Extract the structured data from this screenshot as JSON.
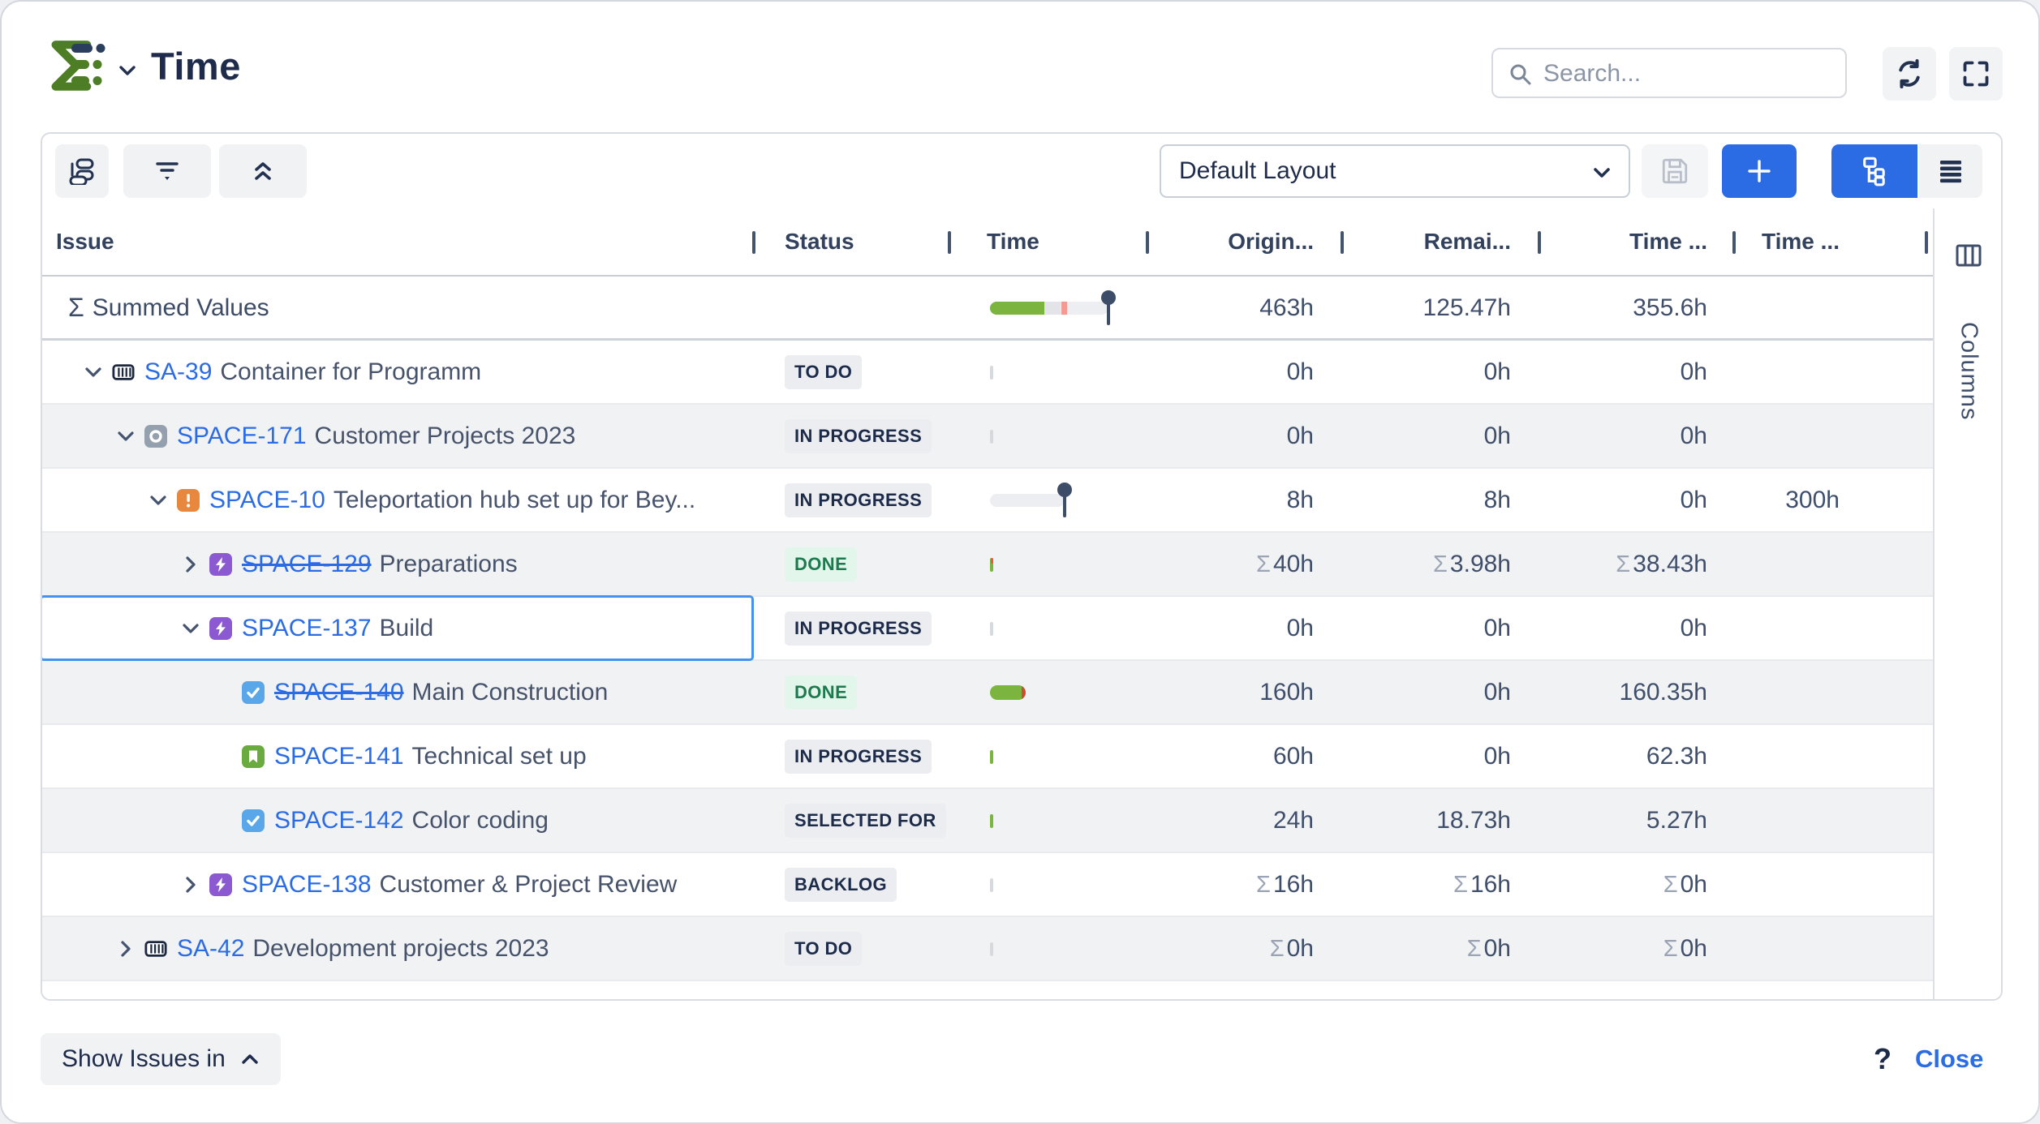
{
  "app": {
    "title": "Time"
  },
  "search": {
    "placeholder": "Search..."
  },
  "toolbar": {
    "layout_selected": "Default Layout"
  },
  "grid": {
    "columns": [
      {
        "label": "Issue"
      },
      {
        "label": "Status"
      },
      {
        "label": "Time"
      },
      {
        "label": "Origin..."
      },
      {
        "label": "Remai..."
      },
      {
        "label": "Time ..."
      },
      {
        "label": "Time ..."
      }
    ],
    "summed": {
      "sigma": "Σ",
      "label": "Summed Values",
      "original": "463h",
      "remaining": "125.47h",
      "time_spent": "355.6h",
      "bar": {
        "green_ratio": 0.46,
        "red_marker_ratio": 0.6,
        "pin_ratio": 1.0
      }
    },
    "rows": [
      {
        "key": "SA-39",
        "summary": "Container for Programm",
        "icon": "container",
        "level": 0,
        "expand": "open",
        "strike": false,
        "sum": false,
        "selected": false,
        "status": {
          "label": "TO DO",
          "kind": "neutral"
        },
        "bar": "tick-gray",
        "values": [
          "0h",
          "0h",
          "0h",
          ""
        ]
      },
      {
        "key": "SPACE-171",
        "summary": "Customer Projects 2023",
        "icon": "outcome",
        "level": 1,
        "expand": "open",
        "strike": false,
        "sum": false,
        "selected": false,
        "status": {
          "label": "IN PROGRESS",
          "kind": "neutral"
        },
        "bar": "tick-gray",
        "values": [
          "0h",
          "0h",
          "0h",
          ""
        ]
      },
      {
        "key": "SPACE-10",
        "summary": "Teleportation hub set up for Bey...",
        "icon": "incident",
        "level": 2,
        "expand": "open",
        "strike": false,
        "sum": false,
        "selected": false,
        "status": {
          "label": "IN PROGRESS",
          "kind": "neutral"
        },
        "bar": "track-pin",
        "values": [
          "8h",
          "8h",
          "0h",
          "300h"
        ]
      },
      {
        "key": "SPACE-129",
        "summary": "Preparations",
        "icon": "epic",
        "level": 3,
        "expand": "closed",
        "strike": true,
        "sum": true,
        "selected": false,
        "status": {
          "label": "DONE",
          "kind": "success"
        },
        "bar": "tick-green-red",
        "values": [
          "40h",
          "3.98h",
          "38.43h",
          ""
        ]
      },
      {
        "key": "SPACE-137",
        "summary": "Build",
        "icon": "epic",
        "level": 3,
        "expand": "open",
        "strike": false,
        "sum": false,
        "selected": true,
        "status": {
          "label": "IN PROGRESS",
          "kind": "neutral"
        },
        "bar": "tick-gray",
        "values": [
          "0h",
          "0h",
          "0h",
          ""
        ]
      },
      {
        "key": "SPACE-140",
        "summary": "Main Construction",
        "icon": "task",
        "level": 4,
        "expand": "leaf",
        "strike": true,
        "sum": false,
        "selected": false,
        "status": {
          "label": "DONE",
          "kind": "success"
        },
        "bar": "pill-green",
        "values": [
          "160h",
          "0h",
          "160.35h",
          ""
        ]
      },
      {
        "key": "SPACE-141",
        "summary": "Technical set up",
        "icon": "story",
        "level": 4,
        "expand": "leaf",
        "strike": false,
        "sum": false,
        "selected": false,
        "status": {
          "label": "IN PROGRESS",
          "kind": "neutral"
        },
        "bar": "tick-green",
        "values": [
          "60h",
          "0h",
          "62.3h",
          ""
        ]
      },
      {
        "key": "SPACE-142",
        "summary": "Color coding",
        "icon": "task",
        "level": 4,
        "expand": "leaf",
        "strike": false,
        "sum": false,
        "selected": false,
        "status": {
          "label": "SELECTED FOR",
          "kind": "neutral"
        },
        "bar": "tick-green",
        "values": [
          "24h",
          "18.73h",
          "5.27h",
          ""
        ]
      },
      {
        "key": "SPACE-138",
        "summary": "Customer & Project Review",
        "icon": "epic",
        "level": 3,
        "expand": "closed",
        "strike": false,
        "sum": true,
        "selected": false,
        "status": {
          "label": "BACKLOG",
          "kind": "neutral"
        },
        "bar": "tick-gray",
        "values": [
          "16h",
          "16h",
          "0h",
          ""
        ]
      },
      {
        "key": "SA-42",
        "summary": "Development projects 2023",
        "icon": "container",
        "level": 1,
        "expand": "closed",
        "strike": false,
        "sum": true,
        "selected": false,
        "status": {
          "label": "TO DO",
          "kind": "neutral"
        },
        "bar": "tick-gray",
        "values": [
          "0h",
          "0h",
          "0h",
          ""
        ]
      }
    ],
    "sigma_prefix": "Σ"
  },
  "columns_tab": {
    "label": "Columns"
  },
  "footer": {
    "show_issues": "Show Issues in",
    "help": "?",
    "close": "Close"
  },
  "colors": {
    "accent_blue": "#2b6ce5",
    "link_blue": "#2b6ce5",
    "bar_green": "#7cb440",
    "bar_red": "#cf4b31",
    "pin_slate": "#3d4d68",
    "done_badge_bg": "#e2f6eb",
    "done_badge_text": "#1e7a4e",
    "neutral_badge_bg": "#ebedf0",
    "selection_border": "#4292ee",
    "icon_epic_purple": "#8b5ad1",
    "icon_task_blue": "#59a7e8",
    "icon_story_green": "#6aab3f",
    "icon_incident_orange": "#e8883e",
    "icon_outcome_gray": "#95a0ae"
  }
}
